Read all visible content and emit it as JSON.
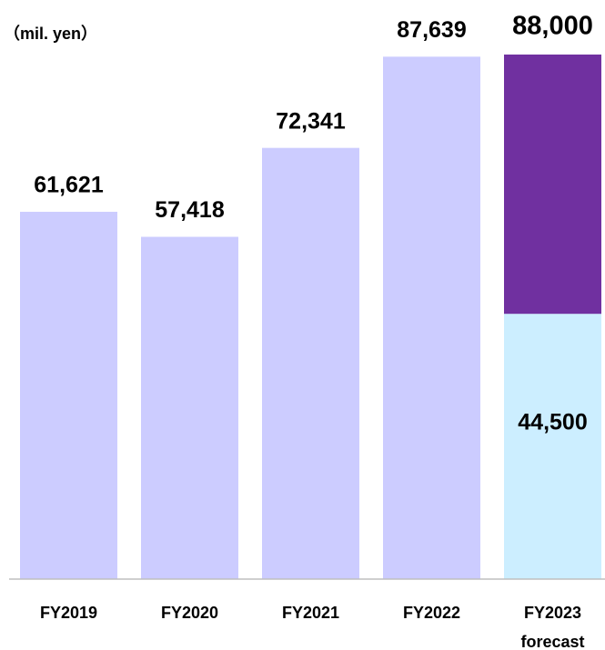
{
  "chart_data": {
    "type": "stacked_bar",
    "unit": "（mil. yen）",
    "categories": [
      "FY2019",
      "FY2020",
      "FY2021",
      "FY2022",
      "FY2023 forecast"
    ],
    "series": [
      {
        "colors": [
          "#ccccff",
          "#ccccff",
          "#ccccff",
          "#ccccff",
          "#cceeff"
        ],
        "values": [
          61621,
          57418,
          72341,
          87639,
          44500
        ],
        "value_labels": [
          "61,621",
          "57,418",
          "72,341",
          "87,639",
          "44,500"
        ]
      },
      {
        "color": "#7030a0",
        "values": [
          null,
          null,
          null,
          null,
          43500
        ]
      }
    ],
    "totals": [
      null,
      null,
      null,
      null,
      88000
    ],
    "total_labels": [
      null,
      null,
      null,
      null,
      "88,000"
    ],
    "ylim": [
      0,
      88000
    ]
  }
}
